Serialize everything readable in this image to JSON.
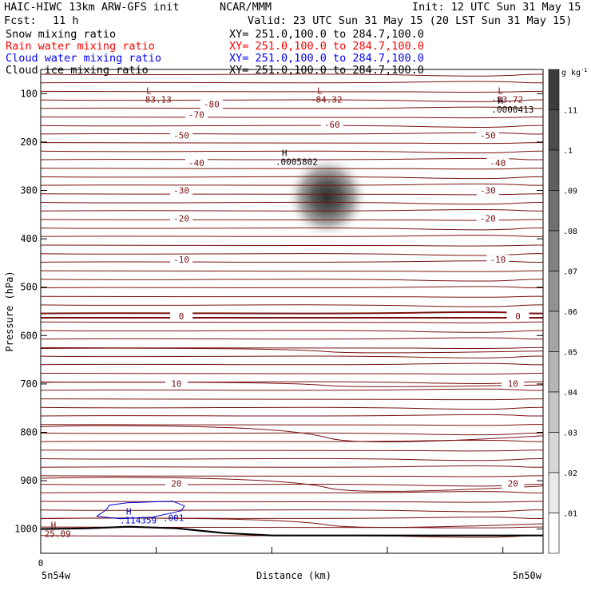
{
  "header": {
    "title_left": "HAIC-HIWC 13km ARW-GFS init",
    "org": "NCAR/MMM",
    "init": "Init: 12 UTC Sun 31 May 15",
    "fcst_label": "Fcst:",
    "fcst_value": "11 h",
    "valid": "Valid: 23 UTC Sun 31 May 15 (20 LST Sun 31 May 15)"
  },
  "fields": [
    {
      "label": "Snow mixing ratio",
      "xy": "XY= 251.0,100.0 to 284.7,100.0",
      "color": "#000000"
    },
    {
      "label": "Rain water mixing ratio",
      "xy": "XY= 251.0,100.0 to 284.7,100.0",
      "color": "#ff0000"
    },
    {
      "label": "Cloud water mixing ratio",
      "xy": "XY= 251.0,100.0 to 284.7,100.0",
      "color": "#0000ff"
    },
    {
      "label": "Cloud ice mixing ratio",
      "xy": "XY= 251.0,100.0 to 284.7,100.0",
      "color": "#000000"
    }
  ],
  "colors": {
    "isotherm": "#7a1010",
    "cloud_water": "#0000cc",
    "ground": "#000000"
  },
  "chart_data": {
    "type": "heatmap",
    "xlabel": "Distance (km)",
    "ylabel": "Pressure (hPa)",
    "x_tick_labels": {
      "left_origin": "0",
      "left": "5n54w",
      "right": "5n50w"
    },
    "y_ticks": [
      100,
      200,
      300,
      400,
      500,
      600,
      700,
      800,
      900,
      1000
    ],
    "ylim": [
      50,
      1050
    ],
    "colorbar": {
      "unit": "g kg",
      "unit_exp": "-1",
      "labels": [
        ".11",
        ".1",
        ".09",
        ".08",
        ".07",
        ".06",
        ".05",
        ".04",
        ".03",
        ".02",
        ".01"
      ]
    },
    "isotherm_labels": [
      {
        "text": "-80",
        "x": 0.34,
        "p": 122
      },
      {
        "text": "-70",
        "x": 0.31,
        "p": 143
      },
      {
        "text": "-60",
        "x": 0.58,
        "p": 164
      },
      {
        "text": "-50",
        "x": 0.28,
        "p": 186
      },
      {
        "text": "-50",
        "x": 0.89,
        "p": 186
      },
      {
        "text": "-40",
        "x": 0.31,
        "p": 243
      },
      {
        "text": "-40",
        "x": 0.91,
        "p": 243
      },
      {
        "text": "-30",
        "x": 0.28,
        "p": 300
      },
      {
        "text": "-30",
        "x": 0.89,
        "p": 300
      },
      {
        "text": "-20",
        "x": 0.28,
        "p": 358
      },
      {
        "text": "-20",
        "x": 0.89,
        "p": 358
      },
      {
        "text": "-10",
        "x": 0.28,
        "p": 443
      },
      {
        "text": "-10",
        "x": 0.91,
        "p": 443
      },
      {
        "text": "0",
        "x": 0.28,
        "p": 560
      },
      {
        "text": "0",
        "x": 0.95,
        "p": 560
      },
      {
        "text": "10",
        "x": 0.27,
        "p": 699
      },
      {
        "text": "10",
        "x": 0.94,
        "p": 699
      },
      {
        "text": "20",
        "x": 0.27,
        "p": 906
      },
      {
        "text": "20",
        "x": 0.94,
        "p": 906
      }
    ],
    "extrema": [
      {
        "symbol": "L",
        "value": "-83.13",
        "x": 0.21,
        "p": 87,
        "color": "#7a1010"
      },
      {
        "symbol": "L",
        "value": "-84.32",
        "x": 0.55,
        "p": 87,
        "color": "#7a1010"
      },
      {
        "symbol": "L",
        "value": "-83.72",
        "x": 0.91,
        "p": 87,
        "color": "#7a1010"
      },
      {
        "symbol": "H",
        "value": ".0000413",
        "x": 0.91,
        "p": 108,
        "color": "#000000"
      },
      {
        "symbol": "H",
        "value": ".0005802",
        "x": 0.48,
        "p": 216,
        "color": "#000000"
      },
      {
        "symbol": "H",
        "value": ".114359",
        "x": 0.17,
        "p": 957,
        "color": "#0000cc"
      },
      {
        "symbol": "H",
        "value": "25.09",
        "x": 0.02,
        "p": 985,
        "color": "#7a1010"
      }
    ],
    "cloud_water_contour_label": ".001",
    "ice_max": {
      "x": 0.57,
      "p": 300,
      "value": 0.11
    }
  }
}
